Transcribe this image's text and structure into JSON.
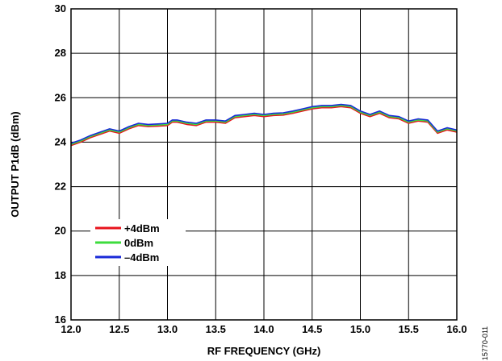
{
  "chart_data": {
    "type": "line",
    "title": "",
    "xlabel": "RF FREQUENCY (GHz)",
    "ylabel": "OUTPUT P1dB (dBm)",
    "xlim": [
      12.0,
      16.0
    ],
    "ylim": [
      16,
      30
    ],
    "xticks": [
      "12.0",
      "12.5",
      "13.0",
      "13.5",
      "14.0",
      "14.5",
      "15.0",
      "15.5",
      "16.0"
    ],
    "yticks": [
      "16",
      "18",
      "20",
      "22",
      "24",
      "26",
      "28",
      "30"
    ],
    "grid": true,
    "legend_position": "lower-left",
    "figure_id": "15770-011",
    "x": [
      12.0,
      12.1,
      12.2,
      12.3,
      12.4,
      12.5,
      12.6,
      12.7,
      12.8,
      12.9,
      13.0,
      13.05,
      13.1,
      13.2,
      13.3,
      13.4,
      13.5,
      13.6,
      13.7,
      13.8,
      13.9,
      14.0,
      14.1,
      14.2,
      14.3,
      14.4,
      14.5,
      14.6,
      14.7,
      14.8,
      14.9,
      15.0,
      15.1,
      15.2,
      15.3,
      15.4,
      15.5,
      15.6,
      15.7,
      15.8,
      15.9,
      16.0
    ],
    "series": [
      {
        "name": "+4dBm",
        "color": "#e8141c",
        "values": [
          23.85,
          24.0,
          24.2,
          24.35,
          24.5,
          24.4,
          24.6,
          24.75,
          24.7,
          24.72,
          24.75,
          24.9,
          24.9,
          24.8,
          24.75,
          24.9,
          24.9,
          24.85,
          25.1,
          25.15,
          25.2,
          25.15,
          25.2,
          25.22,
          25.3,
          25.4,
          25.5,
          25.55,
          25.55,
          25.6,
          25.55,
          25.3,
          25.15,
          25.3,
          25.1,
          25.05,
          24.85,
          24.95,
          24.9,
          24.4,
          24.55,
          24.45
        ]
      },
      {
        "name": "0dBm",
        "color": "#3ddc3d",
        "values": [
          23.9,
          24.05,
          24.25,
          24.4,
          24.55,
          24.45,
          24.65,
          24.8,
          24.75,
          24.77,
          24.8,
          24.95,
          24.95,
          24.85,
          24.8,
          24.95,
          24.95,
          24.9,
          25.15,
          25.2,
          25.25,
          25.2,
          25.25,
          25.27,
          25.35,
          25.45,
          25.55,
          25.6,
          25.6,
          25.65,
          25.6,
          25.35,
          25.2,
          25.35,
          25.15,
          25.1,
          24.9,
          25.0,
          24.95,
          24.45,
          24.6,
          24.5
        ]
      },
      {
        "name": "–4dBm",
        "color": "#1a2ad8",
        "values": [
          23.95,
          24.1,
          24.3,
          24.45,
          24.6,
          24.5,
          24.7,
          24.85,
          24.8,
          24.82,
          24.85,
          25.0,
          25.0,
          24.9,
          24.85,
          25.0,
          25.0,
          24.95,
          25.2,
          25.25,
          25.3,
          25.25,
          25.3,
          25.32,
          25.4,
          25.5,
          25.6,
          25.65,
          25.65,
          25.7,
          25.65,
          25.4,
          25.25,
          25.4,
          25.2,
          25.15,
          24.95,
          25.05,
          25.0,
          24.5,
          24.65,
          24.55
        ]
      }
    ]
  }
}
